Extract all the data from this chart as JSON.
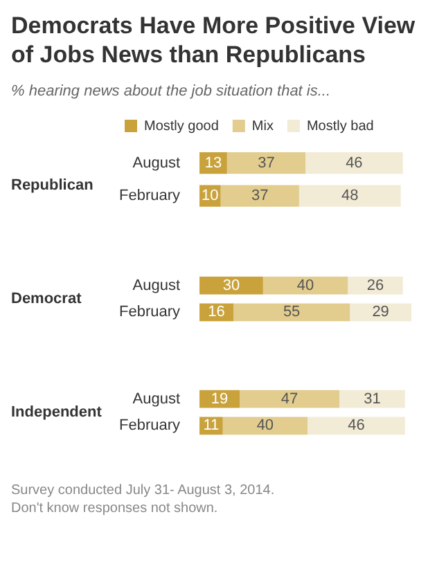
{
  "chart_data": [
    {
      "type": "bar",
      "title": "Democrats Have More Positive View of Jobs News than Republicans",
      "subtitle": "% hearing news about the job situation that is...",
      "ylabel": "Republican",
      "orientation": "horizontal",
      "stacked": true,
      "data_labels": true,
      "tick_labels": "y",
      "legend": "top",
      "categories": [
        "August",
        "February"
      ],
      "series": [
        {
          "name": "Mostly good",
          "color": "#c9a23c",
          "values": [
            13,
            10
          ]
        },
        {
          "name": "Mix",
          "color": "#e2cd8e",
          "values": [
            37,
            37
          ]
        },
        {
          "name": "Mostly bad",
          "color": "#f2ebd6",
          "values": [
            46,
            48
          ]
        }
      ]
    },
    {
      "type": "bar",
      "ylabel": "Democrat",
      "orientation": "horizontal",
      "stacked": true,
      "data_labels": true,
      "tick_labels": "y",
      "categories": [
        "August",
        "February"
      ],
      "series": [
        {
          "color": "#c9a23c",
          "values": [
            30,
            16
          ]
        },
        {
          "color": "#e2cd8e",
          "values": [
            40,
            55
          ]
        },
        {
          "color": "#f2ebd6",
          "values": [
            26,
            29
          ]
        }
      ]
    },
    {
      "type": "bar",
      "ylabel": "Independent",
      "orientation": "horizontal",
      "stacked": true,
      "data_labels": true,
      "tick_labels": "y",
      "categories": [
        "August",
        "February"
      ],
      "series": [
        {
          "color": "#c9a23c",
          "values": [
            19,
            11
          ]
        },
        {
          "color": "#e2cd8e",
          "values": [
            47,
            40
          ]
        },
        {
          "color": "#f2ebd6",
          "values": [
            31,
            46
          ]
        }
      ],
      "annotations": [
        "Survey conducted July 31- August 3, 2014.",
        "Don't know responses not shown."
      ]
    }
  ]
}
